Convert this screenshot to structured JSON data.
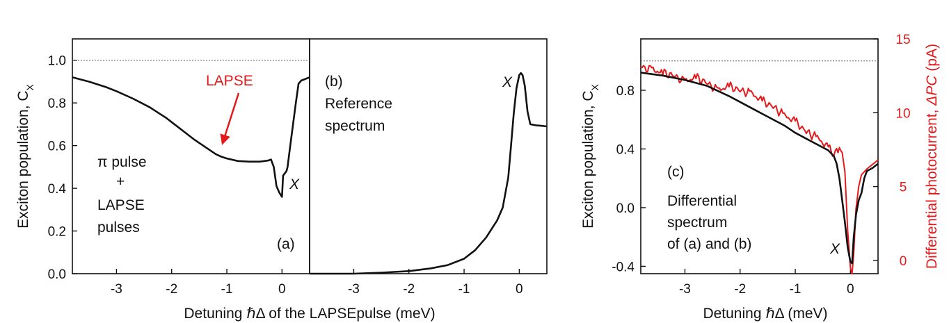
{
  "colors": {
    "black": "#111111",
    "red": "#e31a1c",
    "reference": "#555555"
  },
  "left_figure": {
    "xlabel": "Detuning ℏΔ of the LAPSEpulse (meV)",
    "ylabel": "Exciton population, C",
    "ylabel_sub": "X"
  },
  "panel_c": {
    "xlabel": "Detuning ℏΔ  (meV)",
    "ylabel": "Exciton population, C",
    "ylabel_sub": "X",
    "y2label_prefix": "Differential photocurrent, ",
    "y2label_var": "ΔPC",
    "y2label_unit": " (pA)"
  },
  "annotations": {
    "a_pi_pulse": "π pulse",
    "a_plus": "+",
    "a_lapse": "LAPSE",
    "a_pulses": "pulses",
    "a_tag": "(a)",
    "a_x": "X",
    "a_arrow_label": "LAPSE",
    "b_tag": "(b)",
    "b_line1": "Reference",
    "b_line2": "spectrum",
    "b_x": "X",
    "c_tag": "(c)",
    "c_line1": "Differential",
    "c_line2": "spectrum",
    "c_line3": "of (a) and (b)",
    "c_x": "X"
  },
  "chart_data": [
    {
      "panel": "a",
      "type": "line",
      "xlim": [
        -3.8,
        0.5
      ],
      "ylim": [
        0.0,
        1.1
      ],
      "x_ticks": [
        -3,
        -2,
        -1,
        0
      ],
      "x_tick_labels": [
        "-3",
        "-2",
        "-1",
        "0"
      ],
      "y_ticks": [
        0.0,
        0.2,
        0.4,
        0.6,
        0.8,
        1.0
      ],
      "y_tick_labels": [
        "0.0",
        "0.2",
        "0.4",
        "0.6",
        "0.8",
        "1.0"
      ],
      "reference_line": 1.0,
      "series": [
        {
          "color": "#111111",
          "x": [
            -3.8,
            -3.5,
            -3.2,
            -3.0,
            -2.7,
            -2.4,
            -2.1,
            -1.8,
            -1.6,
            -1.4,
            -1.2,
            -1.1,
            -1.0,
            -0.8,
            -0.6,
            -0.4,
            -0.25,
            -0.2,
            -0.15,
            -0.1,
            -0.05,
            0.0,
            0.02,
            0.05,
            0.08,
            0.1,
            0.15,
            0.2,
            0.25,
            0.3,
            0.35,
            0.4,
            0.45,
            0.5
          ],
          "y": [
            0.92,
            0.9,
            0.875,
            0.855,
            0.82,
            0.78,
            0.73,
            0.67,
            0.63,
            0.595,
            0.56,
            0.548,
            0.54,
            0.528,
            0.525,
            0.525,
            0.53,
            0.535,
            0.5,
            0.41,
            0.38,
            0.36,
            0.46,
            0.47,
            0.48,
            0.5,
            0.6,
            0.7,
            0.8,
            0.89,
            0.905,
            0.91,
            0.915,
            0.92
          ]
        }
      ]
    },
    {
      "panel": "b",
      "type": "line",
      "xlim": [
        -3.8,
        0.5
      ],
      "ylim": [
        0.0,
        1.1
      ],
      "x_ticks": [
        -3,
        -2,
        -1,
        0
      ],
      "x_tick_labels": [
        "-3",
        "-2",
        "-1",
        "0"
      ],
      "series": [
        {
          "color": "#111111",
          "x": [
            -3.8,
            -3.0,
            -2.5,
            -2.0,
            -1.6,
            -1.3,
            -1.0,
            -0.8,
            -0.6,
            -0.4,
            -0.3,
            -0.2,
            -0.15,
            -0.1,
            -0.05,
            0.0,
            0.03,
            0.06,
            0.1,
            0.15,
            0.2,
            0.3,
            0.4,
            0.5
          ],
          "y": [
            0.0,
            0.0,
            0.005,
            0.012,
            0.025,
            0.04,
            0.07,
            0.11,
            0.17,
            0.25,
            0.31,
            0.45,
            0.6,
            0.75,
            0.87,
            0.93,
            0.94,
            0.93,
            0.88,
            0.76,
            0.7,
            0.695,
            0.693,
            0.69
          ]
        }
      ]
    },
    {
      "panel": "c",
      "type": "line",
      "xlim": [
        -3.8,
        0.5
      ],
      "ylim": [
        -0.45,
        1.15
      ],
      "y2lim": [
        -0.9,
        15.0
      ],
      "x_ticks": [
        -3,
        -2,
        -1,
        0
      ],
      "x_tick_labels": [
        "-3",
        "-2",
        "-1",
        "0"
      ],
      "y_ticks": [
        -0.4,
        0.0,
        0.4,
        0.8
      ],
      "y_tick_labels": [
        "-0.4",
        "0.0",
        "0.4",
        "0.8"
      ],
      "y2_ticks": [
        0,
        5,
        10,
        15
      ],
      "y2_tick_labels": [
        "0",
        "5",
        "10",
        "15"
      ],
      "reference_line": 1.0,
      "series": [
        {
          "axis": "left",
          "color": "#111111",
          "x": [
            -3.8,
            -3.4,
            -3.0,
            -2.6,
            -2.2,
            -2.0,
            -1.8,
            -1.5,
            -1.2,
            -1.0,
            -0.8,
            -0.6,
            -0.4,
            -0.3,
            -0.25,
            -0.2,
            -0.15,
            -0.1,
            -0.05,
            0.0,
            0.03,
            0.06,
            0.1,
            0.15,
            0.2,
            0.25,
            0.3,
            0.4,
            0.5
          ],
          "y": [
            0.92,
            0.9,
            0.87,
            0.83,
            0.76,
            0.72,
            0.68,
            0.62,
            0.56,
            0.51,
            0.47,
            0.43,
            0.39,
            0.35,
            0.3,
            0.2,
            0.05,
            -0.1,
            -0.27,
            -0.37,
            -0.38,
            -0.2,
            -0.05,
            0.05,
            0.1,
            0.2,
            0.25,
            0.27,
            0.3
          ]
        },
        {
          "axis": "right",
          "color": "#e31a1c",
          "x": [
            -3.8,
            -3.6,
            -3.4,
            -3.2,
            -3.0,
            -2.8,
            -2.6,
            -2.4,
            -2.2,
            -2.0,
            -1.8,
            -1.6,
            -1.4,
            -1.2,
            -1.0,
            -0.8,
            -0.6,
            -0.4,
            -0.3,
            -0.2,
            -0.15,
            -0.1,
            -0.05,
            0.0,
            0.03,
            0.06,
            0.1,
            0.15,
            0.2,
            0.3,
            0.4,
            0.5
          ],
          "y": [
            13.1,
            12.9,
            12.7,
            12.5,
            12.1,
            12.4,
            12.0,
            11.5,
            11.8,
            11.5,
            11.3,
            10.8,
            10.4,
            9.8,
            9.4,
            8.7,
            8.3,
            7.6,
            7.2,
            7.5,
            7.3,
            6.0,
            2.0,
            -0.5,
            -0.9,
            0.5,
            3.5,
            5.0,
            5.8,
            6.2,
            6.5,
            6.8
          ]
        }
      ]
    }
  ]
}
